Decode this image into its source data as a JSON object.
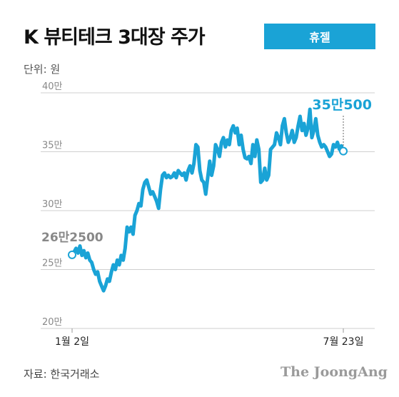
{
  "header": {
    "title": "K 뷰티테크 3대장 주가",
    "badge": "휴젤"
  },
  "unit_label": "단위: 원",
  "source_label": "자료: 한국거래소",
  "brand_label": "The JoongAng",
  "colors": {
    "line": "#1aa3d6",
    "grid": "#cfcfcf",
    "accent": "#1aa3d6"
  },
  "chart_data": {
    "type": "line",
    "title": "K 뷰티테크 3대장 주가",
    "xlabel": "",
    "ylabel": "",
    "y_unit": "원",
    "ylim": [
      200000,
      400000
    ],
    "y_ticks": [
      200000,
      250000,
      300000,
      350000,
      400000
    ],
    "y_tick_labels": [
      "20만",
      "25만",
      "30만",
      "35만",
      "40만"
    ],
    "x_tick_labels": [
      "1월 2일",
      "7월 23일"
    ],
    "grid": true,
    "annotations": {
      "start": "26만2500",
      "end": "35만500"
    },
    "series": [
      {
        "values": [
          262500,
          265000,
          268000,
          264000,
          270000,
          262000,
          266000,
          260000,
          264000,
          258000,
          256000,
          250000,
          246000,
          248000,
          240000,
          236000,
          232000,
          236000,
          242000,
          240000,
          248000,
          254000,
          250000,
          258000,
          254000,
          262000,
          258000,
          268000,
          286000,
          282000,
          286000,
          280000,
          296000,
          300000,
          306000,
          304000,
          318000,
          324000,
          326000,
          320000,
          314000,
          316000,
          312000,
          308000,
          302000,
          318000,
          330000,
          332000,
          328000,
          330000,
          328000,
          329000,
          332000,
          328000,
          334000,
          332000,
          330000,
          332000,
          326000,
          334000,
          338000,
          332000,
          340000,
          356000,
          354000,
          334000,
          326000,
          324000,
          314000,
          328000,
          342000,
          330000,
          338000,
          356000,
          352000,
          346000,
          358000,
          362000,
          354000,
          360000,
          356000,
          368000,
          372000,
          366000,
          370000,
          356000,
          364000,
          352000,
          345000,
          344000,
          346000,
          340000,
          356000,
          346000,
          360000,
          352000,
          324000,
          326000,
          336000,
          326000,
          330000,
          352000,
          354000,
          356000,
          366000,
          362000,
          356000,
          372000,
          378000,
          366000,
          358000,
          362000,
          368000,
          358000,
          362000,
          372000,
          380000,
          368000,
          374000,
          364000,
          370000,
          386000,
          362000,
          368000,
          378000,
          364000,
          358000,
          354000,
          356000,
          354000,
          350000,
          346000,
          348000,
          356000,
          354000,
          358000,
          352000,
          355000,
          350500
        ]
      }
    ]
  }
}
